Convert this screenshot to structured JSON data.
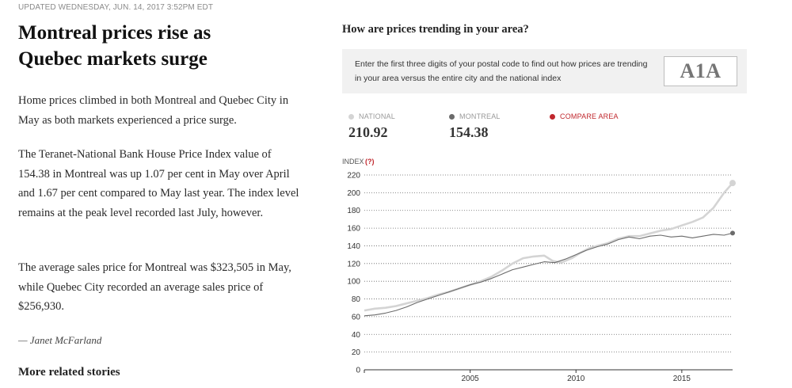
{
  "article": {
    "updated": "UPDATED WEDNESDAY, JUN. 14, 2017 3:52PM EDT",
    "headline": "Montreal prices rise as Quebec markets surge",
    "paragraphs": [
      "Home prices climbed in both Montreal and Quebec City in May as both markets experienced a price surge.",
      "The Teranet-National Bank House Price Index value of 154.38 in Montreal was up 1.07 per cent in May over April and 1.67 per cent compared to May last year. The index level remains at the peak level recorded last July, however.",
      "The average sales price for Montreal was $323,505 in May, while Quebec City recorded an average sales price of $256,930."
    ],
    "byline": "— Janet McFarland",
    "related": "More related stories"
  },
  "panel": {
    "title": "How are prices trending in your area?",
    "postal_prompt": "Enter the first three digits of your postal code to find out how prices are trending in your area versus the entire city and the national index",
    "postal_placeholder": "A1A"
  },
  "legend": {
    "national": {
      "label": "NATIONAL",
      "value": "210.92",
      "color": "#d4d4d4"
    },
    "montreal": {
      "label": "MONTREAL",
      "value": "154.38",
      "color": "#6b6b6b"
    },
    "compare": {
      "label": "COMPARE AREA",
      "color": "#c0272d"
    }
  },
  "chart_data": {
    "type": "line",
    "ylabel": "INDEX",
    "ylabel_help": "(?)",
    "ylim": [
      0,
      220
    ],
    "yticks": [
      0,
      20,
      40,
      60,
      80,
      100,
      120,
      140,
      160,
      180,
      200,
      220
    ],
    "xlim": [
      2000.0,
      2017.4
    ],
    "xticks": [
      2005,
      2010,
      2015
    ],
    "grid": true,
    "series": [
      {
        "name": "NATIONAL",
        "color": "#d4d4d4",
        "x": [
          2000.0,
          2000.5,
          2001.0,
          2001.5,
          2002.0,
          2002.5,
          2003.0,
          2003.5,
          2004.0,
          2004.5,
          2005.0,
          2005.5,
          2006.0,
          2006.5,
          2007.0,
          2007.5,
          2008.0,
          2008.5,
          2008.9,
          2009.3,
          2009.8,
          2010.2,
          2010.6,
          2011.0,
          2011.5,
          2012.0,
          2012.5,
          2013.0,
          2013.5,
          2014.0,
          2014.5,
          2015.0,
          2015.5,
          2016.0,
          2016.5,
          2017.0,
          2017.4
        ],
        "values": [
          67,
          69,
          70,
          72,
          75,
          78,
          81,
          85,
          88,
          92,
          96,
          100,
          105,
          112,
          120,
          126,
          128,
          129,
          123,
          121,
          126,
          132,
          137,
          140,
          143,
          148,
          151,
          151,
          154,
          157,
          159,
          163,
          167,
          172,
          183,
          200,
          210.92
        ]
      },
      {
        "name": "MONTREAL",
        "color": "#6b6b6b",
        "x": [
          2000.0,
          2000.5,
          2001.0,
          2001.5,
          2002.0,
          2002.5,
          2003.0,
          2003.5,
          2004.0,
          2004.5,
          2005.0,
          2005.5,
          2006.0,
          2006.5,
          2007.0,
          2007.5,
          2008.0,
          2008.5,
          2009.0,
          2009.5,
          2010.0,
          2010.5,
          2011.0,
          2011.5,
          2012.0,
          2012.5,
          2013.0,
          2013.5,
          2014.0,
          2014.5,
          2015.0,
          2015.5,
          2016.0,
          2016.5,
          2017.0,
          2017.4
        ],
        "values": [
          61,
          62,
          64,
          67,
          71,
          76,
          80,
          84,
          88,
          92,
          96,
          99,
          103,
          108,
          113,
          116,
          119,
          122,
          121,
          125,
          130,
          135,
          139,
          142,
          147,
          150,
          148,
          151,
          152,
          150,
          151,
          149,
          151,
          153,
          152,
          154.38
        ]
      }
    ]
  }
}
